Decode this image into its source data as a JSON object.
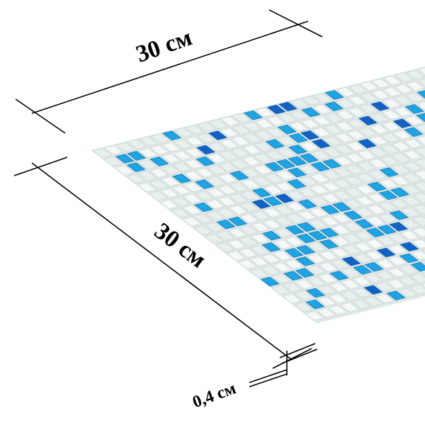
{
  "dimensions": [
    {
      "label": "30 см"
    },
    {
      "label": "30 см"
    },
    {
      "label": "0,4 см"
    }
  ]
}
